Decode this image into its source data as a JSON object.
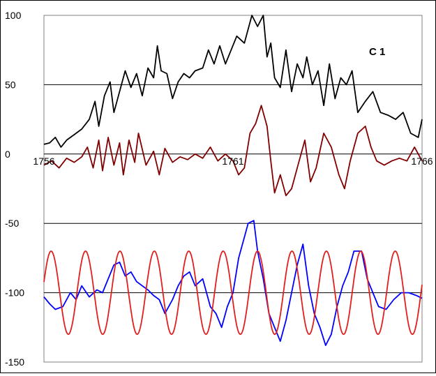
{
  "chart_data": {
    "type": "line",
    "title": "C 1",
    "xlabel": "",
    "ylabel": "",
    "xlim": [
      1756,
      1766
    ],
    "ylim": [
      -150,
      100
    ],
    "x_ticks": [
      "1756",
      "1761",
      "1766"
    ],
    "y_ticks": [
      100,
      50,
      0,
      -50,
      -100,
      -150
    ],
    "grid": true,
    "legend": "none",
    "series": [
      {
        "color": "#000000",
        "points": [
          [
            1756.0,
            7
          ],
          [
            1756.15,
            8
          ],
          [
            1756.3,
            12
          ],
          [
            1756.45,
            5
          ],
          [
            1756.6,
            10
          ],
          [
            1756.8,
            14
          ],
          [
            1757.0,
            18
          ],
          [
            1757.2,
            25
          ],
          [
            1757.35,
            38
          ],
          [
            1757.45,
            20
          ],
          [
            1757.6,
            42
          ],
          [
            1757.75,
            52
          ],
          [
            1757.85,
            30
          ],
          [
            1758.0,
            45
          ],
          [
            1758.15,
            60
          ],
          [
            1758.3,
            48
          ],
          [
            1758.45,
            58
          ],
          [
            1758.6,
            42
          ],
          [
            1758.75,
            62
          ],
          [
            1758.9,
            55
          ],
          [
            1759.0,
            78
          ],
          [
            1759.1,
            60
          ],
          [
            1759.25,
            58
          ],
          [
            1759.4,
            40
          ],
          [
            1759.55,
            52
          ],
          [
            1759.7,
            58
          ],
          [
            1759.85,
            55
          ],
          [
            1760.0,
            60
          ],
          [
            1760.2,
            62
          ],
          [
            1760.35,
            75
          ],
          [
            1760.5,
            65
          ],
          [
            1760.65,
            78
          ],
          [
            1760.8,
            65
          ],
          [
            1760.95,
            75
          ],
          [
            1761.1,
            85
          ],
          [
            1761.3,
            80
          ],
          [
            1761.5,
            100
          ],
          [
            1761.65,
            92
          ],
          [
            1761.8,
            100
          ],
          [
            1761.9,
            70
          ],
          [
            1762.0,
            80
          ],
          [
            1762.1,
            55
          ],
          [
            1762.25,
            48
          ],
          [
            1762.4,
            75
          ],
          [
            1762.55,
            45
          ],
          [
            1762.7,
            65
          ],
          [
            1762.85,
            55
          ],
          [
            1762.95,
            70
          ],
          [
            1763.1,
            50
          ],
          [
            1763.25,
            60
          ],
          [
            1763.4,
            35
          ],
          [
            1763.55,
            65
          ],
          [
            1763.7,
            40
          ],
          [
            1763.85,
            55
          ],
          [
            1764.0,
            50
          ],
          [
            1764.15,
            60
          ],
          [
            1764.3,
            30
          ],
          [
            1764.5,
            38
          ],
          [
            1764.7,
            45
          ],
          [
            1764.9,
            30
          ],
          [
            1765.1,
            28
          ],
          [
            1765.3,
            25
          ],
          [
            1765.5,
            30
          ],
          [
            1765.7,
            15
          ],
          [
            1765.9,
            12
          ],
          [
            1766.0,
            25
          ]
        ]
      },
      {
        "color": "#800000",
        "points": [
          [
            1756.0,
            -8
          ],
          [
            1756.2,
            -5
          ],
          [
            1756.4,
            -10
          ],
          [
            1756.6,
            -3
          ],
          [
            1756.8,
            -6
          ],
          [
            1757.0,
            -2
          ],
          [
            1757.15,
            5
          ],
          [
            1757.3,
            -10
          ],
          [
            1757.45,
            10
          ],
          [
            1757.55,
            -12
          ],
          [
            1757.7,
            12
          ],
          [
            1757.85,
            -8
          ],
          [
            1758.0,
            8
          ],
          [
            1758.1,
            -15
          ],
          [
            1758.25,
            10
          ],
          [
            1758.4,
            -6
          ],
          [
            1758.5,
            15
          ],
          [
            1758.7,
            -8
          ],
          [
            1758.9,
            2
          ],
          [
            1759.05,
            -15
          ],
          [
            1759.2,
            4
          ],
          [
            1759.4,
            -6
          ],
          [
            1759.6,
            -2
          ],
          [
            1759.8,
            -4
          ],
          [
            1760.0,
            0
          ],
          [
            1760.2,
            -3
          ],
          [
            1760.4,
            5
          ],
          [
            1760.6,
            -5
          ],
          [
            1760.8,
            0
          ],
          [
            1761.0,
            -5
          ],
          [
            1761.15,
            -15
          ],
          [
            1761.3,
            -10
          ],
          [
            1761.45,
            15
          ],
          [
            1761.6,
            22
          ],
          [
            1761.75,
            35
          ],
          [
            1761.9,
            20
          ],
          [
            1762.0,
            -5
          ],
          [
            1762.1,
            -28
          ],
          [
            1762.25,
            -15
          ],
          [
            1762.4,
            -30
          ],
          [
            1762.55,
            -25
          ],
          [
            1762.7,
            -10
          ],
          [
            1762.9,
            10
          ],
          [
            1763.05,
            -20
          ],
          [
            1763.2,
            -10
          ],
          [
            1763.4,
            15
          ],
          [
            1763.6,
            5
          ],
          [
            1763.8,
            -15
          ],
          [
            1763.95,
            -25
          ],
          [
            1764.1,
            -5
          ],
          [
            1764.3,
            15
          ],
          [
            1764.5,
            20
          ],
          [
            1764.65,
            5
          ],
          [
            1764.8,
            -5
          ],
          [
            1765.0,
            -8
          ],
          [
            1765.2,
            -5
          ],
          [
            1765.4,
            -3
          ],
          [
            1765.6,
            -5
          ],
          [
            1765.8,
            5
          ],
          [
            1766.0,
            -5
          ]
        ]
      },
      {
        "color": "#0000ff",
        "points": [
          [
            1756.0,
            -103
          ],
          [
            1756.15,
            -108
          ],
          [
            1756.3,
            -112
          ],
          [
            1756.5,
            -110
          ],
          [
            1756.7,
            -100
          ],
          [
            1756.85,
            -105
          ],
          [
            1757.0,
            -95
          ],
          [
            1757.2,
            -103
          ],
          [
            1757.4,
            -98
          ],
          [
            1757.55,
            -100
          ],
          [
            1757.7,
            -90
          ],
          [
            1757.85,
            -80
          ],
          [
            1758.0,
            -78
          ],
          [
            1758.15,
            -88
          ],
          [
            1758.3,
            -85
          ],
          [
            1758.45,
            -92
          ],
          [
            1758.6,
            -95
          ],
          [
            1758.75,
            -98
          ],
          [
            1758.9,
            -102
          ],
          [
            1759.05,
            -105
          ],
          [
            1759.2,
            -115
          ],
          [
            1759.4,
            -105
          ],
          [
            1759.55,
            -95
          ],
          [
            1759.7,
            -88
          ],
          [
            1759.85,
            -85
          ],
          [
            1760.0,
            -95
          ],
          [
            1760.2,
            -90
          ],
          [
            1760.4,
            -110
          ],
          [
            1760.55,
            -115
          ],
          [
            1760.7,
            -125
          ],
          [
            1760.85,
            -110
          ],
          [
            1761.0,
            -100
          ],
          [
            1761.15,
            -75
          ],
          [
            1761.3,
            -60
          ],
          [
            1761.4,
            -50
          ],
          [
            1761.55,
            -48
          ],
          [
            1761.65,
            -70
          ],
          [
            1761.8,
            -90
          ],
          [
            1761.95,
            -115
          ],
          [
            1762.1,
            -125
          ],
          [
            1762.25,
            -135
          ],
          [
            1762.4,
            -120
          ],
          [
            1762.55,
            -100
          ],
          [
            1762.7,
            -80
          ],
          [
            1762.85,
            -65
          ],
          [
            1763.0,
            -95
          ],
          [
            1763.15,
            -115
          ],
          [
            1763.3,
            -125
          ],
          [
            1763.45,
            -138
          ],
          [
            1763.6,
            -130
          ],
          [
            1763.75,
            -110
          ],
          [
            1763.9,
            -95
          ],
          [
            1764.05,
            -85
          ],
          [
            1764.2,
            -70
          ],
          [
            1764.4,
            -70
          ],
          [
            1764.55,
            -90
          ],
          [
            1764.7,
            -100
          ],
          [
            1764.85,
            -110
          ],
          [
            1765.05,
            -112
          ],
          [
            1765.25,
            -105
          ],
          [
            1765.45,
            -100
          ],
          [
            1765.65,
            -100
          ],
          [
            1765.85,
            -102
          ],
          [
            1766.0,
            -104
          ]
        ]
      },
      {
        "color": "#e0201e",
        "curve": {
          "mean": -100,
          "amplitude": 30,
          "period": 0.91,
          "phase": 1756.19
        }
      }
    ]
  }
}
